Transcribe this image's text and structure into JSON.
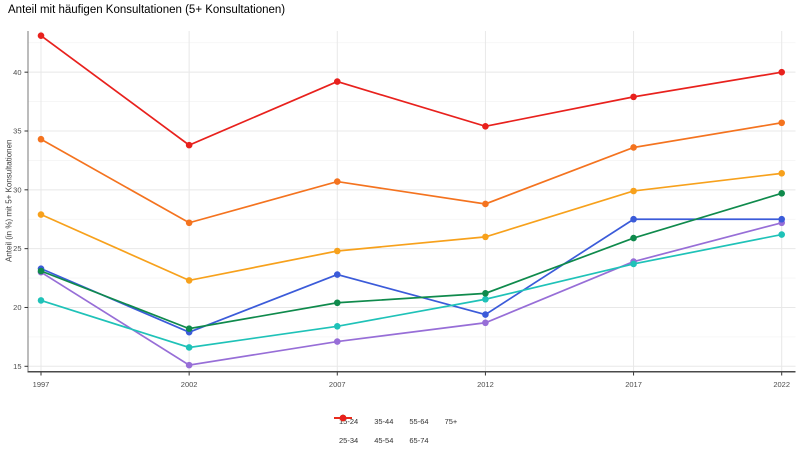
{
  "chart_data": {
    "type": "line",
    "title": "Anteil mit häufigen Konsultationen (5+ Konsultationen)",
    "xlabel": "",
    "ylabel": "Anteil (in %) mit 5+ Konsultationen",
    "x": [
      1997,
      2002,
      2007,
      2012,
      2017,
      2022
    ],
    "yticks": [
      15,
      20,
      25,
      30,
      35,
      40
    ],
    "ylim": [
      14.6,
      43.5
    ],
    "grid": "major and minor horizontal gridlines, vertical gridline per year",
    "legend_position": "bottom",
    "marker": "point-on-line",
    "series": [
      {
        "name": "15-24",
        "color": "#976ed7",
        "values": [
          23.0,
          15.1,
          17.1,
          18.7,
          23.9,
          27.2
        ]
      },
      {
        "name": "25-34",
        "color": "#3b5bd9",
        "values": [
          23.3,
          17.9,
          22.8,
          19.4,
          27.5,
          27.5
        ]
      },
      {
        "name": "35-44",
        "color": "#1fc2b8",
        "values": [
          20.6,
          16.6,
          18.4,
          20.7,
          23.7,
          26.2
        ]
      },
      {
        "name": "45-54",
        "color": "#0f8a4c",
        "values": [
          23.1,
          18.2,
          20.4,
          21.2,
          25.9,
          29.7
        ]
      },
      {
        "name": "55-64",
        "color": "#f7a11c",
        "values": [
          27.9,
          22.3,
          24.8,
          26.0,
          29.9,
          31.4
        ]
      },
      {
        "name": "65-74",
        "color": "#f4731f",
        "values": [
          34.3,
          27.2,
          30.7,
          28.8,
          33.6,
          35.7
        ]
      },
      {
        "name": "75+",
        "color": "#e8211d",
        "values": [
          43.1,
          33.8,
          39.2,
          35.4,
          37.9,
          40.0
        ]
      }
    ],
    "legend_rows": [
      [
        "15-24",
        "35-44",
        "55-64",
        "75+"
      ],
      [
        "25-34",
        "45-54",
        "65-74"
      ]
    ],
    "style": {
      "background": "#ffffff",
      "grid_major": "#e8e8e8",
      "grid_minor": "#f4f4f4",
      "x_axis_line": "#4a4a4a",
      "y_axis_line": "#7a7a7a",
      "tick_color": "#333333",
      "tick_label_color": "#4d4d4d"
    }
  }
}
